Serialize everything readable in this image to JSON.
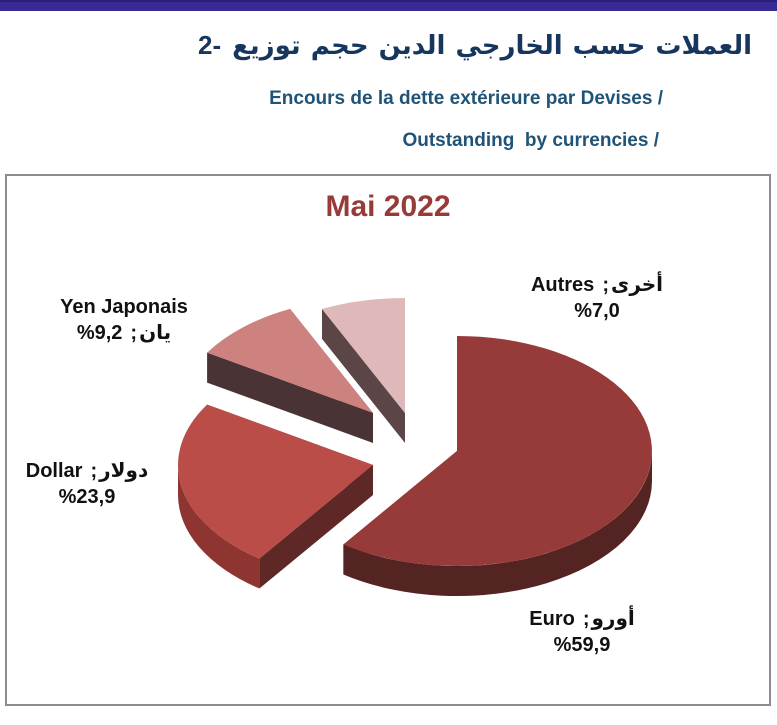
{
  "page": {
    "top_bar_color": "#382A93"
  },
  "header": {
    "title_number": "2-",
    "title_arabic_words_visual": [
      "توزيع",
      "حجم",
      "الدين",
      "الخارجي",
      "حسب",
      "العملات"
    ],
    "subtitle_fr": "Encours de la dette extérieure par Devises /",
    "subtitle_en": "Outstanding  by currencies /"
  },
  "chart_data": {
    "type": "pie",
    "style": "3d-exploded",
    "title": "Mai 2022",
    "title_color": "#973B39",
    "start_angle_deg": 0,
    "direction": "clockwise",
    "labels_position": "outside",
    "separator": ";",
    "series": [
      {
        "name": "Euro",
        "name_ar": "أورو",
        "value": 59.9,
        "pct_display": "%59,9",
        "color_top": "#963B39",
        "color_side": "#532422",
        "color_cut": "#6E2B29"
      },
      {
        "name": "Dollar",
        "name_ar": "دولار",
        "value": 23.9,
        "pct_display": "%23,9",
        "color_top": "#BB4D49",
        "color_side": "#8E3532",
        "color_cut": "#5E2826"
      },
      {
        "name": "Yen Japonais",
        "name_ar": "يان",
        "value": 9.2,
        "pct_display": "%9,2",
        "color_top": "#CE8280",
        "color_side": "#4A3335",
        "color_cut": "#4A3335"
      },
      {
        "name": "Autres",
        "name_ar": "أخرى",
        "value": 7.0,
        "pct_display": "%7,0",
        "color_top": "#DFB8B9",
        "color_side": "#5C4547",
        "color_cut": "#5C4547"
      }
    ]
  }
}
